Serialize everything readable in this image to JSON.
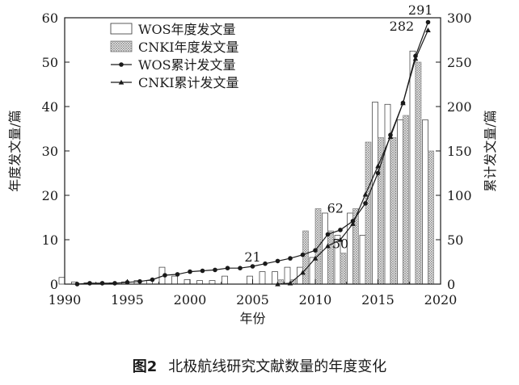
{
  "figure": {
    "number": "图2",
    "caption": "北极航线研究文献数量的年度变化"
  },
  "chart_data": {
    "type": "bar",
    "xlabel": "年份",
    "ylabel_left": "年度发文量/篇",
    "ylabel_right": "累计发文量/篇",
    "xlim": [
      1990,
      2020
    ],
    "ylim_left": [
      0,
      60
    ],
    "ylim_right": [
      0,
      300
    ],
    "x_ticks": [
      "1990",
      "1995",
      "2000",
      "2005",
      "2010",
      "2015",
      "2020"
    ],
    "y_left_ticks": [
      "0",
      "10",
      "20",
      "30",
      "40",
      "50",
      "60"
    ],
    "y_right_ticks": [
      "0",
      "50",
      "100",
      "150",
      "200",
      "250",
      "300"
    ],
    "legend_position": "top-left",
    "series": [
      {
        "name": "WOS年度发文量",
        "kind": "bar",
        "axis": "left",
        "style": "hollow",
        "x": [
          1990,
          1991,
          1992,
          1993,
          1994,
          1995,
          1996,
          1997,
          1998,
          1999,
          2000,
          2001,
          2002,
          2003,
          2004,
          2005,
          2006,
          2007,
          2008,
          2009,
          2010,
          2011,
          2012,
          2013,
          2014,
          2015,
          2016,
          2017,
          2018,
          2019
        ],
        "values": [
          1.5,
          0.5,
          0.3,
          0.2,
          0.3,
          0.5,
          0.8,
          0.8,
          3.8,
          1.8,
          1,
          0.8,
          0.8,
          1.8,
          0,
          1.8,
          2.8,
          2.8,
          3.8,
          3.8,
          6,
          16,
          11,
          16,
          11,
          41,
          40.5,
          37,
          52.5,
          37
        ]
      },
      {
        "name": "CNKI年度发文量",
        "kind": "bar",
        "axis": "left",
        "style": "hatched",
        "x": [
          2007,
          2008,
          2009,
          2010,
          2011,
          2012,
          2013,
          2014,
          2015,
          2016,
          2017,
          2018,
          2019
        ],
        "values": [
          1,
          1,
          12,
          17,
          12,
          7,
          17,
          32,
          33,
          33,
          38,
          50,
          30
        ]
      },
      {
        "name": "WOS累计发文量",
        "kind": "line",
        "axis": "right",
        "marker": "circle",
        "x": [
          1991,
          1992,
          1993,
          1994,
          1995,
          1996,
          1997,
          1998,
          1999,
          2000,
          2001,
          2002,
          2003,
          2004,
          2005,
          2006,
          2007,
          2008,
          2009,
          2010,
          2011,
          2012,
          2013,
          2014,
          2015,
          2016,
          2017,
          2018,
          2019
        ],
        "values": [
          0,
          1,
          1,
          1,
          2,
          3,
          5,
          10,
          11,
          14,
          15,
          16,
          18,
          18,
          20,
          23,
          26,
          29,
          33,
          38,
          56,
          61,
          71,
          91,
          125,
          168,
          204,
          257,
          295
        ]
      },
      {
        "name": "CNKI累计发文量",
        "kind": "line",
        "axis": "right",
        "marker": "triangle",
        "x": [
          2007,
          2008,
          2009,
          2010,
          2011,
          2012,
          2013,
          2014,
          2015,
          2016,
          2017,
          2018,
          2019
        ],
        "values": [
          0,
          1,
          13,
          29,
          43,
          50,
          68,
          101,
          133,
          166,
          204,
          254,
          286
        ]
      }
    ],
    "annotations": [
      {
        "text": "21",
        "x": 2005,
        "y": 22
      },
      {
        "text": "50",
        "x": 2012,
        "y": 37
      },
      {
        "text": "62",
        "x": 2011.6,
        "y": 77
      },
      {
        "text": "282",
        "x": 2016.9,
        "y": 282
      },
      {
        "text": "291",
        "x": 2018.4,
        "y": 300
      }
    ]
  }
}
